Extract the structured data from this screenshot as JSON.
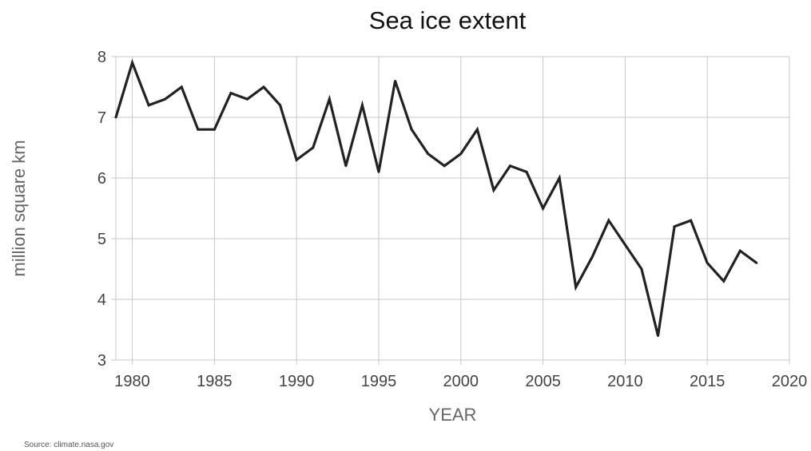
{
  "chart_data": {
    "type": "line",
    "title": "Sea ice extent",
    "xlabel": "YEAR",
    "ylabel": "million square km",
    "source": "Source: climate.nasa.gov",
    "xlim": [
      1979,
      2020
    ],
    "ylim": [
      3,
      8
    ],
    "x_ticks": [
      1980,
      1985,
      1990,
      1995,
      2000,
      2005,
      2010,
      2015,
      2020
    ],
    "y_ticks": [
      3,
      4,
      5,
      6,
      7,
      8
    ],
    "grid": true,
    "colors": {
      "line": "#222222",
      "grid": "#c8c8c8",
      "axis_text": "#444444",
      "label_text": "#666666"
    },
    "series": [
      {
        "x": [
          1979,
          1980,
          1981,
          1982,
          1983,
          1984,
          1985,
          1986,
          1987,
          1988,
          1989,
          1990,
          1991,
          1992,
          1993,
          1994,
          1995,
          1996,
          1997,
          1998,
          1999,
          2000,
          2001,
          2002,
          2003,
          2004,
          2005,
          2006,
          2007,
          2008,
          2009,
          2010,
          2011,
          2012,
          2013,
          2014,
          2015,
          2016,
          2017,
          2018
        ],
        "values": [
          7.0,
          7.9,
          7.2,
          7.3,
          7.5,
          6.8,
          6.8,
          7.4,
          7.3,
          7.5,
          7.2,
          6.3,
          6.5,
          7.3,
          6.2,
          7.2,
          6.1,
          7.6,
          6.8,
          6.4,
          6.2,
          6.4,
          6.8,
          5.8,
          6.2,
          6.1,
          5.5,
          6.0,
          4.2,
          4.7,
          5.3,
          4.9,
          4.5,
          3.4,
          5.2,
          5.3,
          4.6,
          4.3,
          4.8,
          4.6
        ]
      }
    ]
  }
}
